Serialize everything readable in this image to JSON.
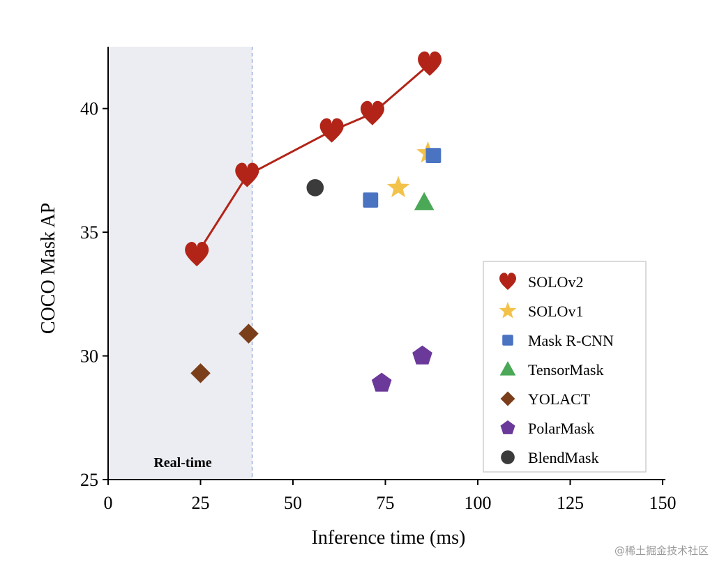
{
  "chart_data": {
    "type": "scatter",
    "title": "",
    "xlabel": "Inference time (ms)",
    "ylabel": "COCO Mask AP",
    "xlim": [
      0,
      150
    ],
    "ylim": [
      25,
      42.5
    ],
    "xticks": [
      "0",
      "25",
      "50",
      "75",
      "100",
      "125",
      "150"
    ],
    "yticks": [
      "25",
      "30",
      "35",
      "40"
    ],
    "grid": false,
    "legend_position": "lower-right",
    "realtime_region": {
      "label": "Real-time",
      "x_end": 39,
      "fill": "#ecedf2",
      "line_color": "#b7c3e3"
    },
    "series": [
      {
        "name": "SOLOv2",
        "marker": "heart",
        "color": "#b22418",
        "connected": true,
        "points": [
          [
            24,
            34.1
          ],
          [
            37.6,
            37.3
          ],
          [
            60.5,
            39.1
          ],
          [
            71.5,
            39.8
          ],
          [
            87,
            41.8
          ]
        ]
      },
      {
        "name": "SOLOv1",
        "marker": "star",
        "color": "#f3c24b",
        "connected": false,
        "points": [
          [
            78.5,
            36.8
          ],
          [
            86.5,
            38.2
          ]
        ]
      },
      {
        "name": "Mask R-CNN",
        "marker": "square",
        "color": "#4a73c2",
        "connected": false,
        "points": [
          [
            71,
            36.3
          ],
          [
            88,
            38.1
          ]
        ]
      },
      {
        "name": "TensorMask",
        "marker": "triangle",
        "color": "#4aa857",
        "connected": false,
        "points": [
          [
            85.5,
            36.2
          ]
        ]
      },
      {
        "name": "YOLACT",
        "marker": "diamond",
        "color": "#7b3e1b",
        "connected": false,
        "points": [
          [
            25,
            29.3
          ],
          [
            38,
            30.9
          ]
        ]
      },
      {
        "name": "PolarMask",
        "marker": "pentagon",
        "color": "#6a399a",
        "connected": false,
        "points": [
          [
            74,
            28.9
          ],
          [
            85,
            30.0
          ]
        ]
      },
      {
        "name": "BlendMask",
        "marker": "circle",
        "color": "#3b3b3b",
        "connected": false,
        "points": [
          [
            56,
            36.8
          ]
        ]
      }
    ]
  },
  "watermark": "@稀土掘金技术社区"
}
